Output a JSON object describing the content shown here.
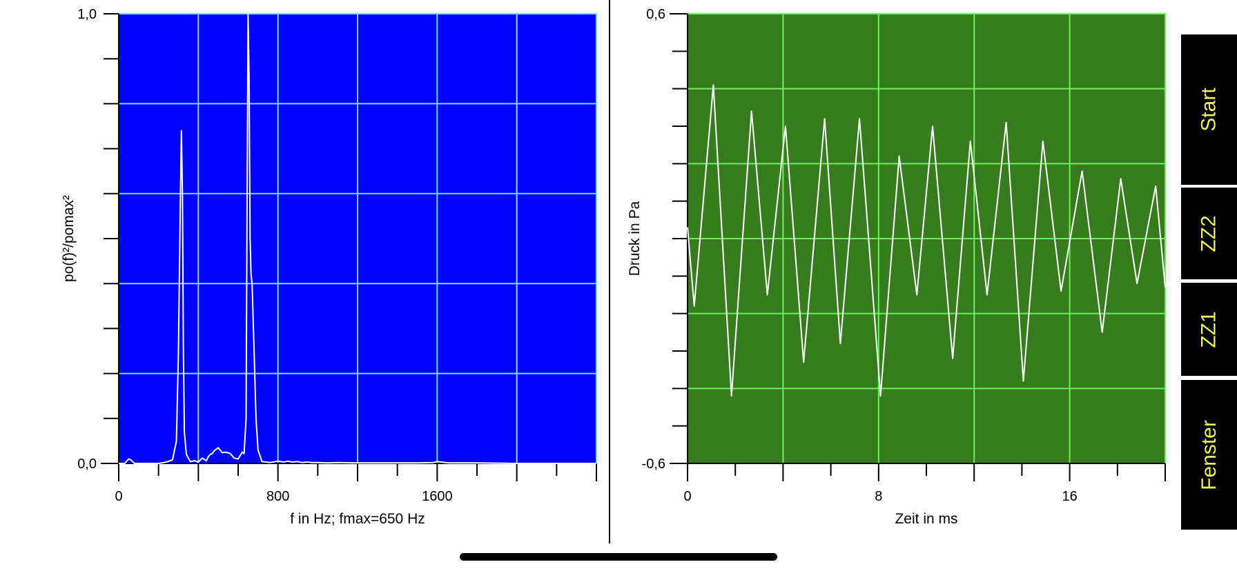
{
  "colors": {
    "spectrum_bg": "#0000ff",
    "signal_bg": "#367b1e",
    "spectrum_grid": "#7fd8ff",
    "signal_grid": "#6cf25a",
    "trace": "#ffffff",
    "button_bg": "#000000",
    "button_text": "#f1f25a"
  },
  "buttons": [
    {
      "label": "Start"
    },
    {
      "label": "ZZ2"
    },
    {
      "label": "ZZ1"
    },
    {
      "label": "Fenster"
    }
  ],
  "chart_data": [
    {
      "type": "line",
      "title": "",
      "xlabel": "f in Hz; fmax=650 Hz",
      "ylabel": "po(f)²/pomax²",
      "xlim": [
        0,
        2400
      ],
      "ylim": [
        0,
        1
      ],
      "x_tick_labels": [
        "0",
        "800",
        "1600"
      ],
      "y_tick_labels": [
        "0,0",
        "1,0"
      ],
      "grid": true,
      "series": [
        {
          "x": [
            0,
            30,
            50,
            60,
            70,
            80,
            100,
            200,
            240,
            270,
            290,
            300,
            310,
            315,
            320,
            325,
            330,
            340,
            350,
            360,
            380,
            400,
            420,
            440,
            450,
            460,
            470,
            480,
            500,
            520,
            540,
            560,
            580,
            600,
            620,
            630,
            640,
            645,
            650,
            655,
            660,
            665,
            670,
            680,
            690,
            700,
            720,
            740,
            760,
            800,
            830,
            850,
            870,
            900,
            920,
            950,
            970,
            1000,
            1050,
            1100,
            1200,
            1300,
            1400,
            1500,
            1580,
            1600,
            1620,
            1640,
            1660,
            1700,
            1800,
            2000,
            2200,
            2400
          ],
          "y": [
            0,
            0,
            0.01,
            0.008,
            0.004,
            0,
            0,
            0,
            0.003,
            0.008,
            0.05,
            0.25,
            0.6,
            0.74,
            0.6,
            0.25,
            0.07,
            0.02,
            0.012,
            0.004,
            0.006,
            0.003,
            0.012,
            0.006,
            0.015,
            0.02,
            0.022,
            0.028,
            0.035,
            0.024,
            0.025,
            0.022,
            0.012,
            0.01,
            0.025,
            0.022,
            0.1,
            0.6,
            1.0,
            0.85,
            0.5,
            0.42,
            0.4,
            0.25,
            0.1,
            0.03,
            0.004,
            0.003,
            0.002,
            0.005,
            0.003,
            0.005,
            0.003,
            0.004,
            0.002,
            0.003,
            0.002,
            0.002,
            0.001,
            0.002,
            0.001,
            0.001,
            0.001,
            0.001,
            0.002,
            0.004,
            0.003,
            0.002,
            0.001,
            0.001,
            0.001,
            0,
            0,
            0
          ]
        }
      ]
    },
    {
      "type": "line",
      "title": "",
      "xlabel": "Zeit in ms",
      "ylabel": "Druck in Pa",
      "xlim": [
        0,
        20
      ],
      "ylim": [
        -0.6,
        0.6
      ],
      "x_tick_labels": [
        "0",
        "8",
        "16"
      ],
      "y_tick_labels": [
        "-0,6",
        "0,6"
      ],
      "grid": true,
      "series": [
        {
          "x": [
            0,
            0.28,
            1.08,
            1.84,
            2.68,
            3.34,
            4.1,
            4.86,
            5.74,
            6.4,
            7.2,
            8.08,
            8.86,
            9.6,
            10.26,
            11.1,
            11.84,
            12.54,
            13.34,
            14.06,
            14.88,
            15.64,
            16.52,
            17.36,
            18.14,
            18.82,
            19.6,
            20
          ],
          "y": [
            0.03,
            -0.18,
            0.41,
            -0.42,
            0.34,
            -0.15,
            0.3,
            -0.33,
            0.32,
            -0.28,
            0.32,
            -0.42,
            0.22,
            -0.15,
            0.3,
            -0.32,
            0.26,
            -0.15,
            0.31,
            -0.38,
            0.26,
            -0.14,
            0.18,
            -0.25,
            0.16,
            -0.12,
            0.14,
            -0.13
          ]
        }
      ]
    }
  ]
}
